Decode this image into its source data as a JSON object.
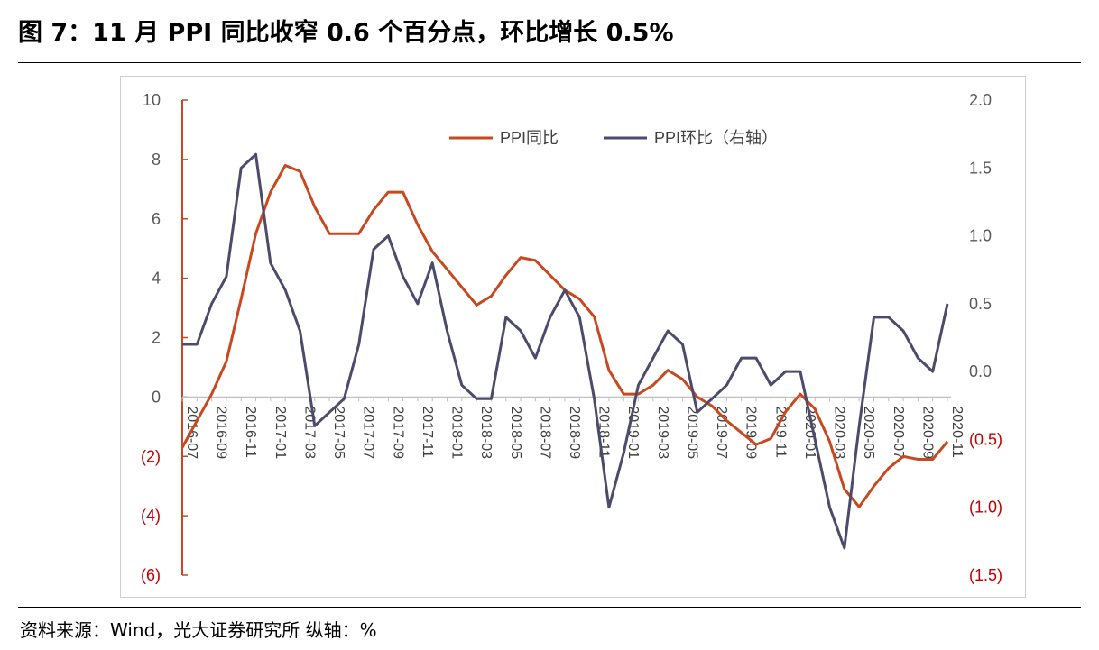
{
  "title": "图 7：11 月 PPI 同比收窄 0.6 个百分点，环比增长 0.5%",
  "source": "资料来源：Wind，光大证券研究所   纵轴：%",
  "colors": {
    "yoy": "#c8491f",
    "mom": "#4c4b6b",
    "neg_label": "#c00000",
    "axis_text": "#595959"
  },
  "chart_data": {
    "type": "line",
    "title": "",
    "legend_position": "top",
    "grid": false,
    "x": [
      "2016-07",
      "2016-08",
      "2016-09",
      "2016-10",
      "2016-11",
      "2016-12",
      "2017-01",
      "2017-02",
      "2017-03",
      "2017-04",
      "2017-05",
      "2017-06",
      "2017-07",
      "2017-08",
      "2017-09",
      "2017-10",
      "2017-11",
      "2017-12",
      "2018-01",
      "2018-02",
      "2018-03",
      "2018-04",
      "2018-05",
      "2018-06",
      "2018-07",
      "2018-08",
      "2018-09",
      "2018-10",
      "2018-11",
      "2018-12",
      "2019-01",
      "2019-02",
      "2019-03",
      "2019-04",
      "2019-05",
      "2019-06",
      "2019-07",
      "2019-08",
      "2019-09",
      "2019-10",
      "2019-11",
      "2019-12",
      "2020-01",
      "2020-02",
      "2020-03",
      "2020-04",
      "2020-05",
      "2020-06",
      "2020-07",
      "2020-08",
      "2020-09",
      "2020-10",
      "2020-11"
    ],
    "x_tick_labels": [
      "2016-07",
      "2016-09",
      "2016-11",
      "2017-01",
      "2017-03",
      "2017-05",
      "2017-07",
      "2017-09",
      "2017-11",
      "2018-01",
      "2018-03",
      "2018-05",
      "2018-07",
      "2018-09",
      "2018-11",
      "2019-01",
      "2019-03",
      "2019-05",
      "2019-07",
      "2019-09",
      "2019-11",
      "2020-01",
      "2020-03",
      "2020-05",
      "2020-07",
      "2020-09",
      "2020-11"
    ],
    "y_left": {
      "range": [
        -6,
        10
      ],
      "tick_labels": [
        "(6)",
        "(4)",
        "(2)",
        "0",
        "2",
        "4",
        "6",
        "8",
        "10"
      ],
      "tick_values": [
        -6,
        -4,
        -2,
        0,
        2,
        4,
        6,
        8,
        10
      ]
    },
    "y_right": {
      "range": [
        -1.5,
        2.0
      ],
      "tick_labels": [
        "(1.5)",
        "(1.0)",
        "(0.5)",
        "0.0",
        "0.5",
        "1.0",
        "1.5",
        "2.0"
      ],
      "tick_values": [
        -1.5,
        -1.0,
        -0.5,
        0.0,
        0.5,
        1.0,
        1.5,
        2.0
      ]
    },
    "series": [
      {
        "name": "PPI同比",
        "axis": "left",
        "values": [
          -1.7,
          -0.8,
          0.1,
          1.2,
          3.3,
          5.5,
          6.9,
          7.8,
          7.6,
          6.4,
          5.5,
          5.5,
          5.5,
          6.3,
          6.9,
          6.9,
          5.8,
          4.9,
          4.3,
          3.7,
          3.1,
          3.4,
          4.1,
          4.7,
          4.6,
          4.1,
          3.6,
          3.3,
          2.7,
          0.9,
          0.1,
          0.1,
          0.4,
          0.9,
          0.6,
          0.0,
          -0.3,
          -0.8,
          -1.2,
          -1.6,
          -1.4,
          -0.5,
          0.1,
          -0.4,
          -1.5,
          -3.1,
          -3.7,
          -3.0,
          -2.4,
          -2.0,
          -2.1,
          -2.1,
          -1.5
        ]
      },
      {
        "name": "PPI环比（右轴）",
        "axis": "right",
        "values": [
          0.2,
          0.2,
          0.5,
          0.7,
          1.5,
          1.6,
          0.8,
          0.6,
          0.3,
          -0.4,
          -0.3,
          -0.2,
          0.2,
          0.9,
          1.0,
          0.7,
          0.5,
          0.8,
          0.3,
          -0.1,
          -0.2,
          -0.2,
          0.4,
          0.3,
          0.1,
          0.4,
          0.6,
          0.4,
          -0.2,
          -1.0,
          -0.6,
          -0.1,
          0.1,
          0.3,
          0.2,
          -0.3,
          -0.2,
          -0.1,
          0.1,
          0.1,
          -0.1,
          0.0,
          0.0,
          -0.5,
          -1.0,
          -1.3,
          -0.4,
          0.4,
          0.4,
          0.3,
          0.1,
          0.0,
          0.5
        ]
      }
    ]
  }
}
